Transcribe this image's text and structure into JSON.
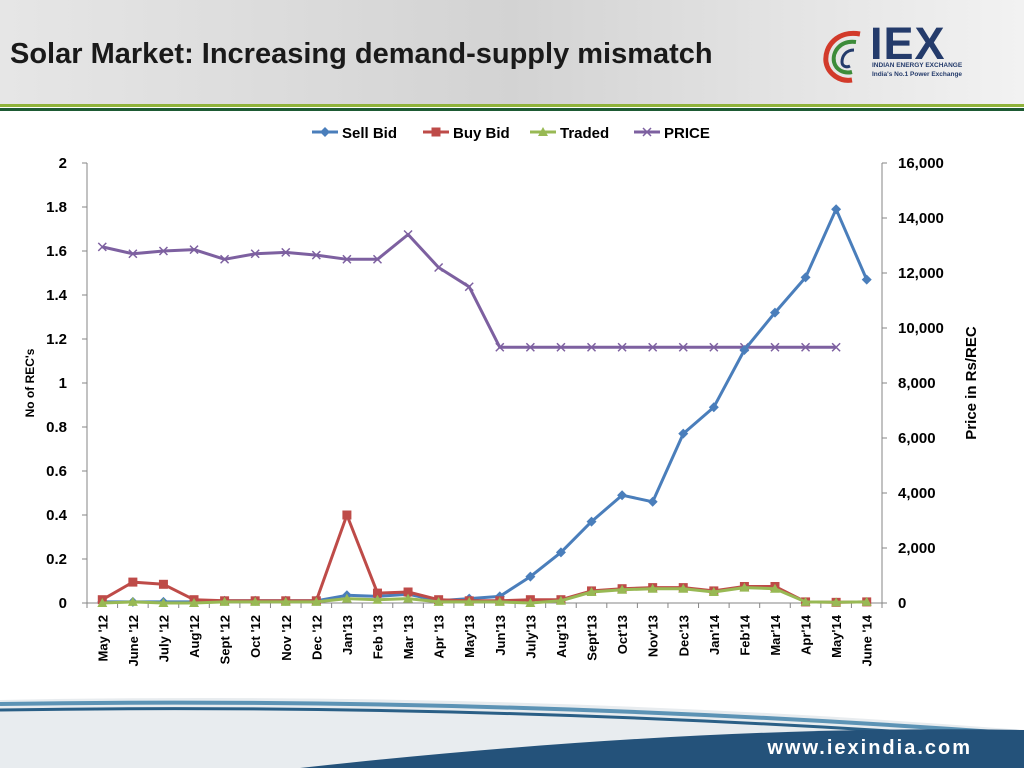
{
  "header": {
    "title": "Solar Market: Increasing demand-supply mismatch"
  },
  "logo": {
    "word": "IEX",
    "line1": "INDIAN ENERGY EXCHANGE",
    "line2": "India's No.1 Power Exchange"
  },
  "footer": {
    "url": "www.iexindia.com"
  },
  "colors": {
    "sell_bid": "#4a7ebb",
    "buy_bid": "#be4b48",
    "traded": "#98b954",
    "price": "#7d60a0",
    "logo_blue": "#243b6b",
    "accent_green": "#8fb33a"
  },
  "chart_data": {
    "type": "line",
    "title": "",
    "ylabel": "No of REC's",
    "y2label": "Price in Rs/REC",
    "ylim": [
      0,
      2
    ],
    "y2lim": [
      0,
      16000
    ],
    "yticks": [
      "0",
      "0.2",
      "0.4",
      "0.6",
      "0.8",
      "1",
      "1.2",
      "1.4",
      "1.6",
      "1.8",
      "2"
    ],
    "y2ticks": [
      "0",
      "2,000",
      "4,000",
      "6,000",
      "8,000",
      "10,000",
      "12,000",
      "14,000",
      "16,000"
    ],
    "legend_position": "top",
    "grid": false,
    "categories": [
      "May '12",
      "June '12",
      "July '12",
      "Aug'12",
      "Sept '12",
      "Oct '12",
      "Nov '12",
      "Dec '12",
      "Jan'13",
      "Feb '13",
      "Mar '13",
      "Apr '13",
      "May'13",
      "Jun'13",
      "July'13",
      "Aug'13",
      "Sept'13",
      "Oct'13",
      "Nov'13",
      "Dec'13",
      "Jan'14",
      "Feb'14",
      "Mar'14",
      "Apr'14",
      "May'14",
      "June '14"
    ],
    "series": [
      {
        "name": "Sell Bid",
        "axis": "left",
        "marker": "diamond",
        "values": [
          0.005,
          0.005,
          0.005,
          0.005,
          0.01,
          0.01,
          0.01,
          0.01,
          0.035,
          0.03,
          0.04,
          0.01,
          0.02,
          0.03,
          0.12,
          0.23,
          0.37,
          0.49,
          0.46,
          0.77,
          0.89,
          1.15,
          1.32,
          1.48,
          1.79,
          1.47
        ]
      },
      {
        "name": "Buy Bid",
        "axis": "left",
        "marker": "square",
        "values": [
          0.015,
          0.095,
          0.085,
          0.015,
          0.01,
          0.01,
          0.01,
          0.01,
          0.4,
          0.045,
          0.05,
          0.015,
          0.01,
          0.01,
          0.015,
          0.015,
          0.055,
          0.065,
          0.07,
          0.07,
          0.055,
          0.075,
          0.075,
          0.005,
          0.003,
          0.005
        ]
      },
      {
        "name": "Traded",
        "axis": "left",
        "marker": "triangle",
        "values": [
          0.0,
          0.005,
          0.0,
          0.0,
          0.005,
          0.005,
          0.005,
          0.005,
          0.02,
          0.015,
          0.02,
          0.005,
          0.005,
          0.005,
          0.0,
          0.01,
          0.05,
          0.06,
          0.065,
          0.065,
          0.05,
          0.07,
          0.065,
          0.005,
          0.003,
          0.005
        ]
      },
      {
        "name": "PRICE",
        "axis": "right",
        "marker": "x",
        "values": [
          12950,
          12700,
          12800,
          12850,
          12500,
          12700,
          12750,
          12650,
          12500,
          12500,
          13400,
          12200,
          11500,
          9300,
          9300,
          9300,
          9300,
          9300,
          9300,
          9300,
          9300,
          9300,
          9300,
          9300,
          9300,
          null
        ]
      }
    ]
  }
}
